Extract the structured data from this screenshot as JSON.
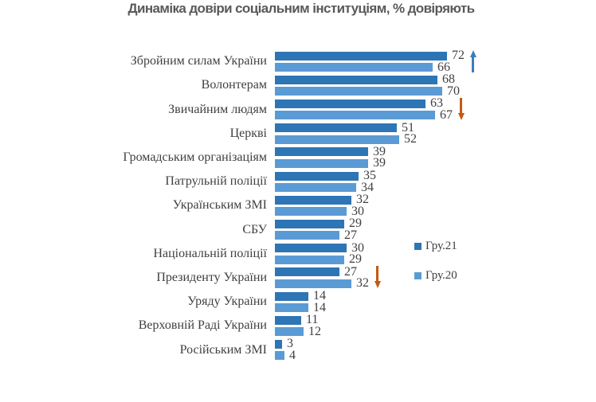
{
  "title": "Динаміка довіри соціальним інституціям, % довіряють",
  "chart_data": {
    "type": "bar",
    "orientation": "horizontal",
    "title": "Динаміка довіри соціальним інституціям, % довіряють",
    "categories": [
      "Збройним силам України",
      "Волонтерам",
      "Звичайним людям",
      "Церкві",
      "Громадським організаціям",
      "Патрульній поліції",
      "Українським ЗМІ",
      "СБУ",
      "Національній поліції",
      "Президенту України",
      "Уряду України",
      "Верховній Раді України",
      "Російським ЗМІ"
    ],
    "series": [
      {
        "name": "Гру.21",
        "color": "#2e75b6",
        "values": [
          72,
          68,
          63,
          51,
          39,
          35,
          32,
          29,
          30,
          27,
          14,
          11,
          3
        ]
      },
      {
        "name": "Гру.20",
        "color": "#5b9bd5",
        "values": [
          66,
          70,
          67,
          52,
          39,
          34,
          30,
          27,
          29,
          32,
          14,
          12,
          4
        ]
      }
    ],
    "annotations": [
      {
        "category_index": 0,
        "direction": "up",
        "color": "#3c7dbf"
      },
      {
        "category_index": 2,
        "direction": "down",
        "color": "#c55a11"
      },
      {
        "category_index": 9,
        "direction": "down",
        "color": "#c55a11"
      }
    ],
    "legend": {
      "position": "right-middle"
    },
    "xlim": [
      0,
      80
    ],
    "grid": false,
    "value_labels": true
  }
}
